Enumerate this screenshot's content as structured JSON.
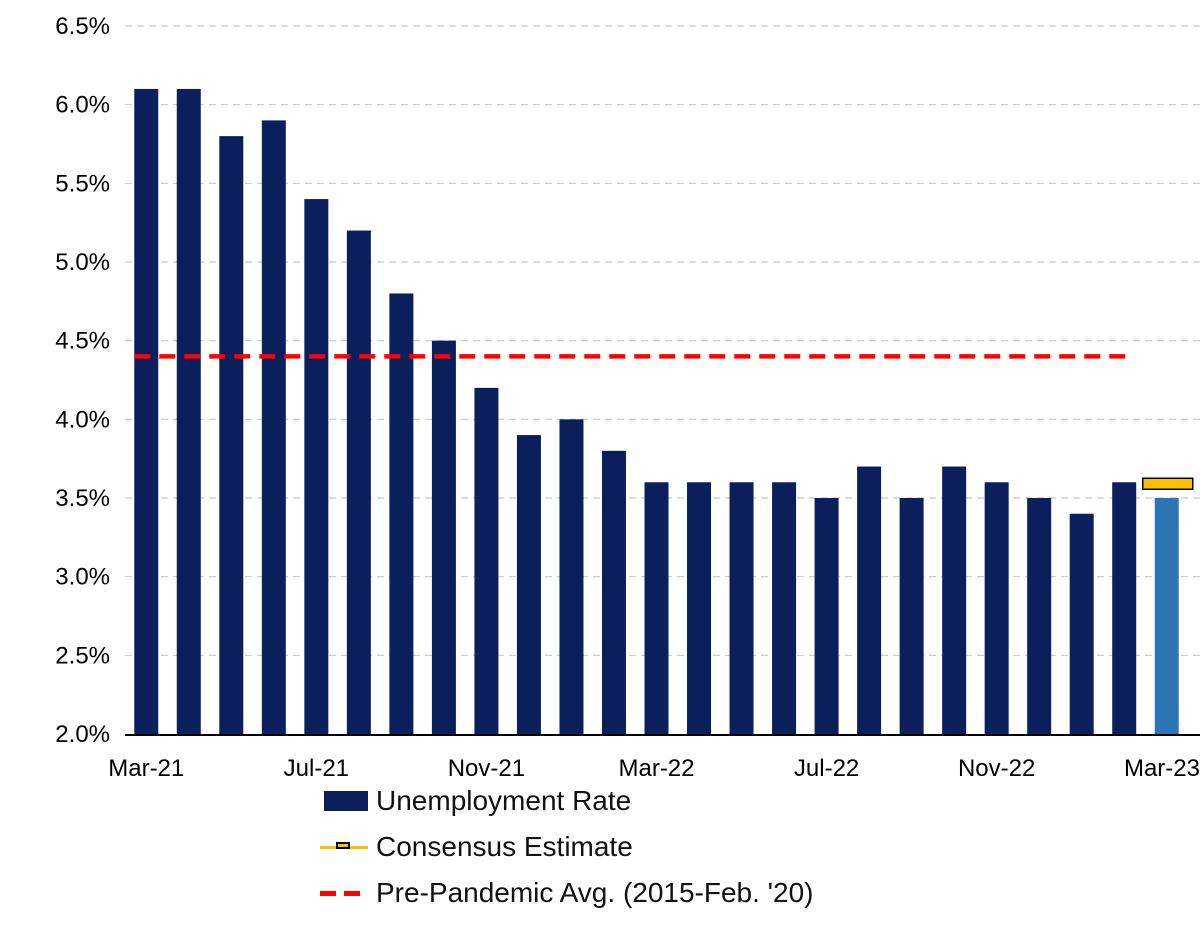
{
  "chart_data": {
    "type": "bar",
    "categories": [
      "Mar-21",
      "Apr-21",
      "May-21",
      "Jun-21",
      "Jul-21",
      "Aug-21",
      "Sep-21",
      "Oct-21",
      "Nov-21",
      "Dec-21",
      "Jan-22",
      "Feb-22",
      "Mar-22",
      "Apr-22",
      "May-22",
      "Jun-22",
      "Jul-22",
      "Aug-22",
      "Sep-22",
      "Oct-22",
      "Nov-22",
      "Dec-22",
      "Jan-23",
      "Feb-23",
      "Mar-23"
    ],
    "x_tick_labels": [
      "Mar-21",
      "Jul-21",
      "Nov-21",
      "Mar-22",
      "Jul-22",
      "Nov-22",
      "Mar-23"
    ],
    "y_tick_labels": [
      "2.0%",
      "2.5%",
      "3.0%",
      "3.5%",
      "4.0%",
      "4.5%",
      "5.0%",
      "5.5%",
      "6.0%",
      "6.5%"
    ],
    "ylim": [
      2.0,
      6.5
    ],
    "grid": "horizontal dashed",
    "series": [
      {
        "name": "Unemployment Rate",
        "values": [
          6.1,
          6.1,
          5.8,
          5.9,
          5.4,
          5.2,
          4.8,
          4.5,
          4.2,
          3.9,
          4.0,
          3.8,
          3.6,
          3.6,
          3.6,
          3.6,
          3.5,
          3.7,
          3.5,
          3.7,
          3.6,
          3.5,
          3.4,
          3.6,
          3.5
        ],
        "color": "#0b1f5c",
        "highlight_last_color": "#2e75b6"
      },
      {
        "name": "Consensus Estimate",
        "category": "Mar-23",
        "value": 3.6,
        "color": "#ffc000"
      },
      {
        "name": "Pre-Pandemic Avg. (2015-Feb. '20)",
        "value": 4.4,
        "color": "#ff0000"
      }
    ],
    "legend": {
      "position": "bottom",
      "items": [
        "Unemployment Rate",
        "Consensus Estimate",
        "Pre-Pandemic Avg. (2015-Feb. '20)"
      ]
    }
  }
}
